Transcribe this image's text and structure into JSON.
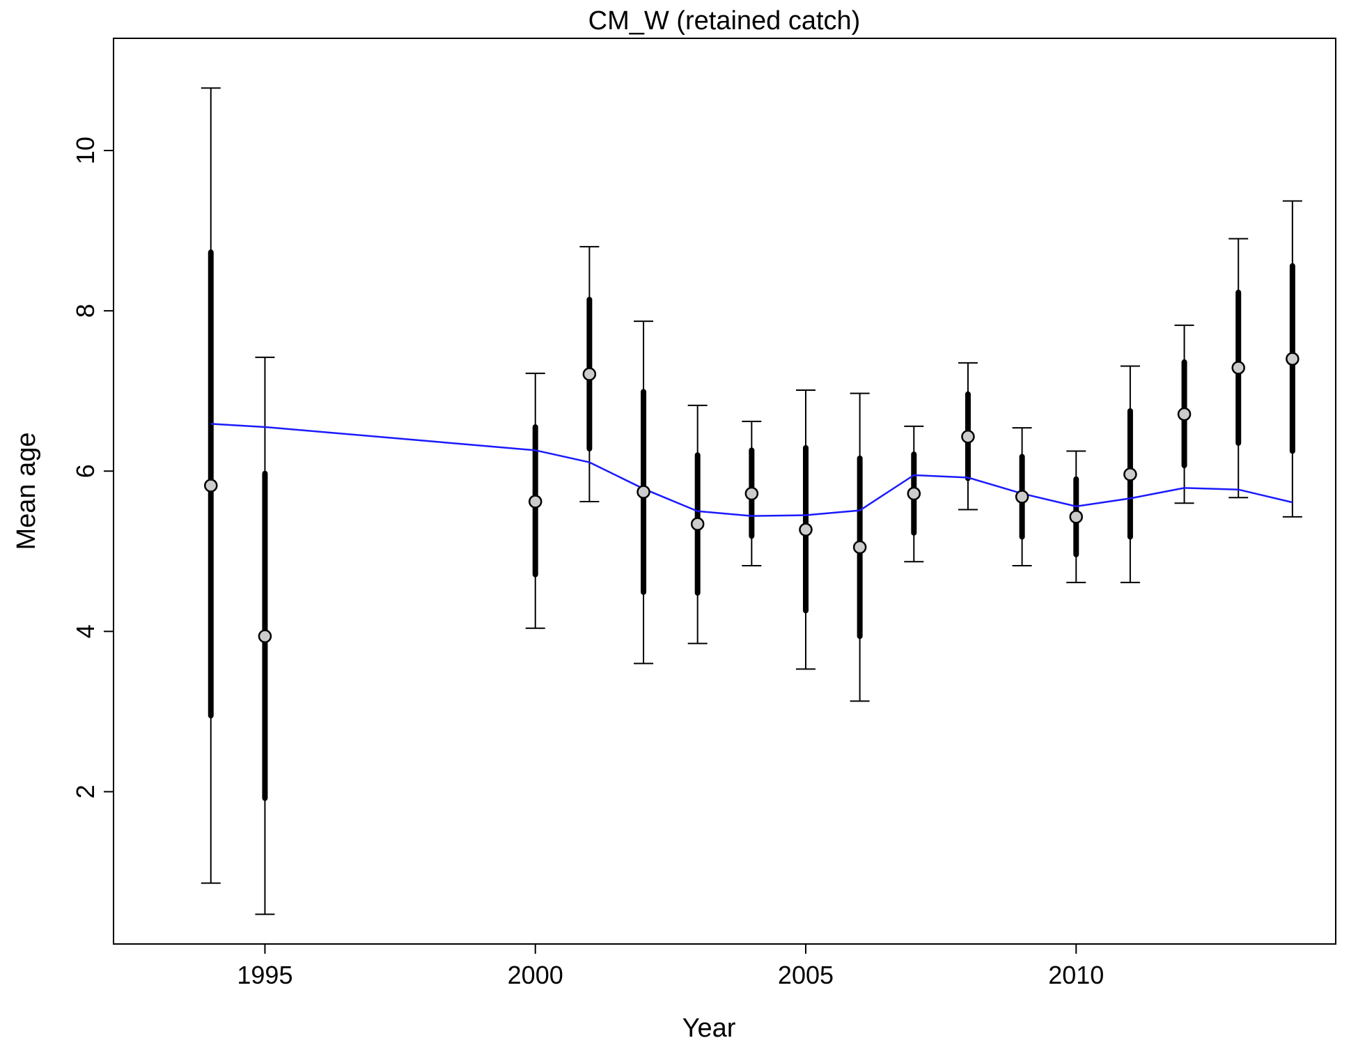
{
  "chart_data": {
    "type": "scatter",
    "title": "CM_W (retained catch)",
    "xlabel": "Year",
    "ylabel": "Mean age",
    "xlim": [
      1992.2,
      2014.8
    ],
    "ylim": [
      0.1,
      11.4
    ],
    "x_ticks": [
      1995,
      2000,
      2005,
      2010
    ],
    "y_ticks": [
      2,
      4,
      6,
      8,
      10
    ],
    "grid": false,
    "legend": "none",
    "colors": {
      "expected_line": "#1a1aff",
      "observed_fill": "#cccccc",
      "error_bars": "#000000"
    },
    "series": [
      {
        "type": "errorbar",
        "x": [
          1994,
          1995,
          2000,
          2001,
          2002,
          2003,
          2004,
          2005,
          2006,
          2007,
          2008,
          2009,
          2010,
          2011,
          2012,
          2013,
          2014
        ],
        "y": [
          5.82,
          3.94,
          5.62,
          7.21,
          5.74,
          5.34,
          5.72,
          5.27,
          5.05,
          5.72,
          6.43,
          5.68,
          5.43,
          5.96,
          6.71,
          7.29,
          7.4
        ],
        "outer_low": [
          0.86,
          0.47,
          4.04,
          5.62,
          3.6,
          3.85,
          4.82,
          3.53,
          3.13,
          4.87,
          5.52,
          4.82,
          4.61,
          4.61,
          5.6,
          5.67,
          5.43
        ],
        "outer_high": [
          10.78,
          7.42,
          7.22,
          8.8,
          7.87,
          6.82,
          6.62,
          7.01,
          6.97,
          6.56,
          7.35,
          6.54,
          6.25,
          7.31,
          7.82,
          8.9,
          9.37
        ],
        "inner_low": [
          2.95,
          1.92,
          4.71,
          6.28,
          4.49,
          4.48,
          5.19,
          4.26,
          3.94,
          5.23,
          5.91,
          5.18,
          4.96,
          5.18,
          6.07,
          6.35,
          6.25
        ],
        "inner_high": [
          8.73,
          5.97,
          6.55,
          8.14,
          6.99,
          6.2,
          6.26,
          6.29,
          6.16,
          6.21,
          6.96,
          6.18,
          5.9,
          6.75,
          7.36,
          8.23,
          8.56
        ]
      },
      {
        "type": "line",
        "x": [
          1994,
          1995,
          2000,
          2001,
          2002,
          2003,
          2004,
          2005,
          2006,
          2007,
          2008,
          2009,
          2010,
          2011,
          2012,
          2013,
          2014
        ],
        "values": [
          6.59,
          6.55,
          6.26,
          6.11,
          5.78,
          5.5,
          5.44,
          5.45,
          5.51,
          5.95,
          5.92,
          5.72,
          5.56,
          5.66,
          5.79,
          5.77,
          5.61
        ]
      }
    ]
  }
}
